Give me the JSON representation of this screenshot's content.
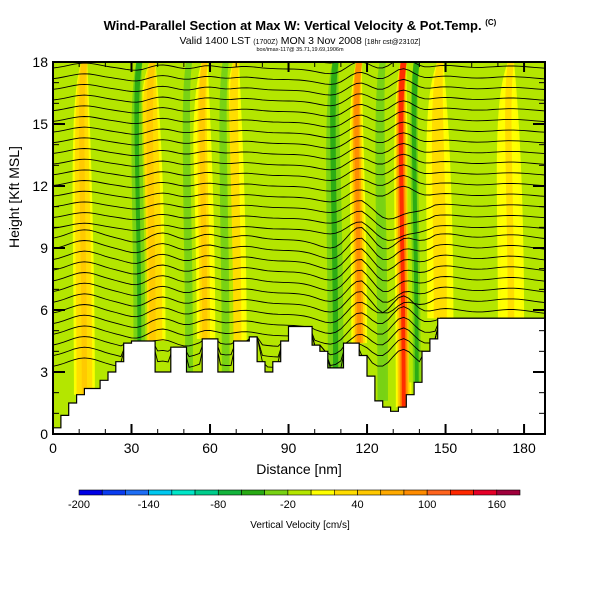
{
  "chart_data": {
    "type": "heatmap",
    "title": "Wind-Parallel Section at Max W: Vertical Velocity & Pot.Temp.",
    "title_tag": "(C)",
    "subtitle_main": "Valid 1400 LST",
    "subtitle_utc": "(1700Z)",
    "subtitle_date": "MON 3 Nov 2008",
    "subtitle_run": "[18hr cst@2310Z]",
    "subline": "box/imax-117@ 35.71,19.69,1906m",
    "xlabel": "Distance [nm]",
    "ylabel": "Height [Kft MSL]",
    "xlim": [
      0,
      188
    ],
    "ylim": [
      0,
      18
    ],
    "xticks": [
      0,
      30,
      60,
      90,
      120,
      150,
      180
    ],
    "yticks": [
      0,
      3,
      6,
      9,
      12,
      15,
      18
    ],
    "colorbar": {
      "label": "Vertical Velocity [cm/s]",
      "min": -200,
      "max": 180,
      "step": 20,
      "tick_labels": [
        "-200",
        "-140",
        "-80",
        "-20",
        "40",
        "100",
        "160"
      ],
      "tick_values": [
        -200,
        -140,
        -80,
        -20,
        40,
        100,
        160
      ],
      "colors": [
        "#0000e6",
        "#0a3cf0",
        "#1e6ef5",
        "#00c8f0",
        "#00e6c8",
        "#00cd8c",
        "#14b43c",
        "#28aa14",
        "#78d214",
        "#b4e600",
        "#ffff00",
        "#ffdc00",
        "#ffc800",
        "#ffaa00",
        "#ff8c00",
        "#ff641e",
        "#ff2800",
        "#e60028",
        "#a0003c"
      ]
    },
    "terrain_profile": [
      [
        0,
        0.3
      ],
      [
        3,
        0.9
      ],
      [
        6,
        1.5
      ],
      [
        9,
        1.9
      ],
      [
        12,
        2.2
      ],
      [
        15,
        2.2
      ],
      [
        18,
        2.6
      ],
      [
        21,
        3.0
      ],
      [
        24,
        3.5
      ],
      [
        27,
        4.4
      ],
      [
        30,
        4.5
      ],
      [
        33,
        4.5
      ],
      [
        36,
        4.5
      ],
      [
        39,
        3.0
      ],
      [
        42,
        3.0
      ],
      [
        45,
        4.2
      ],
      [
        48,
        4.2
      ],
      [
        51,
        3.0
      ],
      [
        54,
        3.0
      ],
      [
        57,
        4.6
      ],
      [
        60,
        4.6
      ],
      [
        63,
        3.0
      ],
      [
        66,
        3.0
      ],
      [
        69,
        4.5
      ],
      [
        72,
        4.5
      ],
      [
        75,
        4.7
      ],
      [
        78,
        3.5
      ],
      [
        81,
        3.0
      ],
      [
        84,
        3.5
      ],
      [
        87,
        4.5
      ],
      [
        90,
        5.2
      ],
      [
        93,
        5.2
      ],
      [
        96,
        5.2
      ],
      [
        99,
        4.3
      ],
      [
        102,
        4.0
      ],
      [
        105,
        3.2
      ],
      [
        108,
        3.2
      ],
      [
        111,
        4.4
      ],
      [
        114,
        4.4
      ],
      [
        117,
        3.8
      ],
      [
        120,
        2.8
      ],
      [
        123,
        1.6
      ],
      [
        126,
        1.3
      ],
      [
        129,
        1.1
      ],
      [
        132,
        1.3
      ],
      [
        135,
        1.9
      ],
      [
        138,
        2.5
      ],
      [
        141,
        4.0
      ],
      [
        144,
        4.6
      ],
      [
        147,
        5.6
      ],
      [
        150,
        5.6
      ],
      [
        153,
        5.6
      ],
      [
        156,
        5.6
      ],
      [
        159,
        5.6
      ],
      [
        162,
        5.6
      ],
      [
        165,
        5.6
      ],
      [
        168,
        5.6
      ],
      [
        171,
        5.6
      ],
      [
        174,
        5.6
      ],
      [
        177,
        5.6
      ],
      [
        180,
        5.6
      ],
      [
        183,
        5.6
      ],
      [
        188,
        5.6
      ]
    ],
    "updraft_columns": [
      {
        "x": 12,
        "w": 60,
        "width": 4
      },
      {
        "x": 38,
        "w": 60,
        "width": 5
      },
      {
        "x": 58,
        "w": 50,
        "width": 4
      },
      {
        "x": 70,
        "w": 40,
        "width": 4
      },
      {
        "x": 117,
        "w": 110,
        "width": 3
      },
      {
        "x": 134,
        "w": 150,
        "width": 3
      },
      {
        "x": 148,
        "w": 40,
        "width": 5
      },
      {
        "x": 175,
        "w": 30,
        "width": 5
      }
    ],
    "downdraft_columns": [
      {
        "x": 33,
        "w": -60,
        "width": 3
      },
      {
        "x": 52,
        "w": -40,
        "width": 3
      },
      {
        "x": 66,
        "w": -40,
        "width": 3
      },
      {
        "x": 108,
        "w": -60,
        "width": 4
      },
      {
        "x": 126,
        "w": -40,
        "width": 4
      },
      {
        "x": 139,
        "w": -50,
        "width": 3
      }
    ],
    "isentrope_count": 30
  }
}
